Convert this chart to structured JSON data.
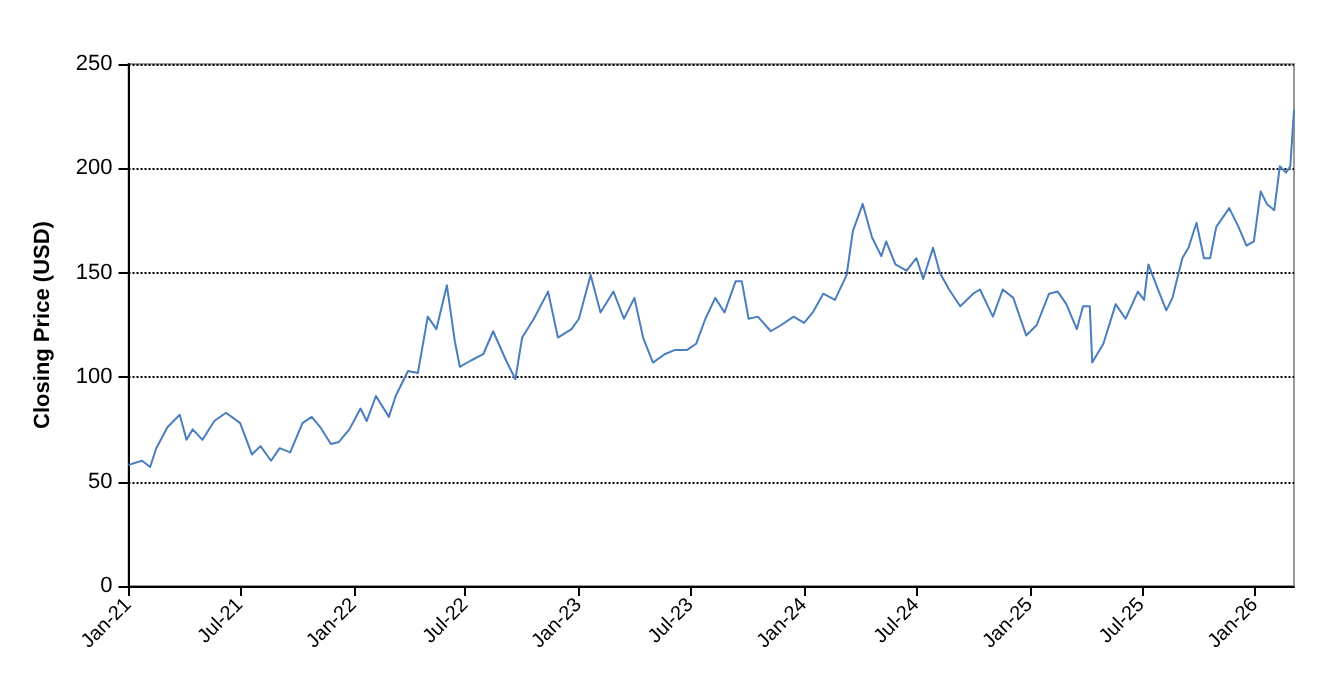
{
  "chart_data": {
    "type": "line",
    "ylabel": "Closing Price (USD)",
    "x": [
      "2021-01-01",
      "2021-01-23",
      "2021-02-05",
      "2021-02-15",
      "2021-03-05",
      "2021-03-25",
      "2021-04-05",
      "2021-04-15",
      "2021-05-01",
      "2021-05-20",
      "2021-06-08",
      "2021-07-01",
      "2021-07-20",
      "2021-08-03",
      "2021-08-20",
      "2021-09-03",
      "2021-09-20",
      "2021-10-10",
      "2021-10-25",
      "2021-11-08",
      "2021-11-25",
      "2021-12-08",
      "2021-12-25",
      "2022-01-12",
      "2022-01-22",
      "2022-02-06",
      "2022-02-27",
      "2022-03-10",
      "2022-03-30",
      "2022-04-15",
      "2022-05-01",
      "2022-05-15",
      "2022-06-01",
      "2022-06-14",
      "2022-06-22",
      "2022-07-10",
      "2022-07-30",
      "2022-08-15",
      "2022-09-05",
      "2022-09-20",
      "2022-10-01",
      "2022-10-20",
      "2022-11-12",
      "2022-11-28",
      "2022-12-20",
      "2023-01-01",
      "2023-01-20",
      "2023-02-05",
      "2023-02-26",
      "2023-03-15",
      "2023-04-01",
      "2023-04-15",
      "2023-05-01",
      "2023-05-20",
      "2023-06-05",
      "2023-06-25",
      "2023-07-10",
      "2023-07-25",
      "2023-08-10",
      "2023-08-25",
      "2023-09-12",
      "2023-09-22",
      "2023-10-03",
      "2023-10-18",
      "2023-11-08",
      "2023-11-25",
      "2023-12-15",
      "2024-01-01",
      "2024-01-15",
      "2024-02-01",
      "2024-02-20",
      "2024-03-10",
      "2024-03-20",
      "2024-04-05",
      "2024-04-20",
      "2024-05-05",
      "2024-05-13",
      "2024-05-28",
      "2024-06-15",
      "2024-07-01",
      "2024-07-12",
      "2024-07-28",
      "2024-08-08",
      "2024-08-23",
      "2024-09-10",
      "2024-10-01",
      "2024-10-12",
      "2024-11-02",
      "2024-11-18",
      "2024-12-05",
      "2024-12-26",
      "2025-01-12",
      "2025-02-01",
      "2025-02-15",
      "2025-03-01",
      "2025-03-18",
      "2025-03-28",
      "2025-04-08",
      "2025-04-12",
      "2025-04-30",
      "2025-05-20",
      "2025-06-05",
      "2025-06-25",
      "2025-07-05",
      "2025-07-12",
      "2025-07-25",
      "2025-08-10",
      "2025-08-20",
      "2025-09-05",
      "2025-09-15",
      "2025-09-28",
      "2025-10-10",
      "2025-10-20",
      "2025-10-30",
      "2025-11-20",
      "2025-12-05",
      "2025-12-18",
      "2025-12-30",
      "2026-01-10",
      "2026-01-20",
      "2026-02-01",
      "2026-02-10",
      "2026-02-20",
      "2026-02-27",
      "2026-03-05"
    ],
    "series": [
      {
        "color": "#4a7ebf",
        "values": [
          58,
          60,
          57,
          66,
          76,
          82,
          70,
          75,
          70,
          79,
          83,
          78,
          63,
          67,
          60,
          66,
          64,
          78,
          81,
          76,
          68,
          69,
          75,
          85,
          79,
          91,
          81,
          91,
          103,
          102,
          129,
          123,
          144,
          117,
          105,
          108,
          111,
          122,
          108,
          99,
          119,
          128,
          141,
          119,
          123,
          128,
          149,
          131,
          141,
          128,
          138,
          119,
          107,
          111,
          113,
          113,
          116,
          128,
          138,
          131,
          146,
          146,
          128,
          129,
          122,
          125,
          129,
          126,
          131,
          140,
          137,
          149,
          170,
          183,
          167,
          158,
          165,
          154,
          151,
          157,
          147,
          162,
          150,
          142,
          134,
          140,
          142,
          129,
          142,
          138,
          120,
          125,
          140,
          141,
          135,
          123,
          134,
          134,
          107,
          116,
          135,
          128,
          141,
          137,
          154,
          144,
          132,
          138,
          157,
          162,
          174,
          157,
          157,
          172,
          181,
          172,
          163,
          165,
          189,
          183,
          180,
          201,
          198,
          201,
          228
        ]
      }
    ],
    "xlim": [
      "2021-01-01",
      "2026-03-05"
    ],
    "xticks": [
      {
        "value": "2021-01-01",
        "label": "Jan-21"
      },
      {
        "value": "2021-07-01",
        "label": "Jul-21"
      },
      {
        "value": "2022-01-01",
        "label": "Jan-22"
      },
      {
        "value": "2022-07-01",
        "label": "Jul-22"
      },
      {
        "value": "2023-01-01",
        "label": "Jan-23"
      },
      {
        "value": "2023-07-01",
        "label": "Jul-23"
      },
      {
        "value": "2024-01-01",
        "label": "Jan-24"
      },
      {
        "value": "2024-07-01",
        "label": "Jul-24"
      },
      {
        "value": "2025-01-01",
        "label": "Jan-25"
      },
      {
        "value": "2025-07-01",
        "label": "Jul-25"
      },
      {
        "value": "2026-01-01",
        "label": "Jan-26"
      }
    ],
    "ylim": [
      0,
      250
    ],
    "yticks": [
      0,
      50,
      100,
      150,
      200,
      250
    ],
    "grid": "y",
    "marker": "none",
    "line_style": "solid"
  }
}
